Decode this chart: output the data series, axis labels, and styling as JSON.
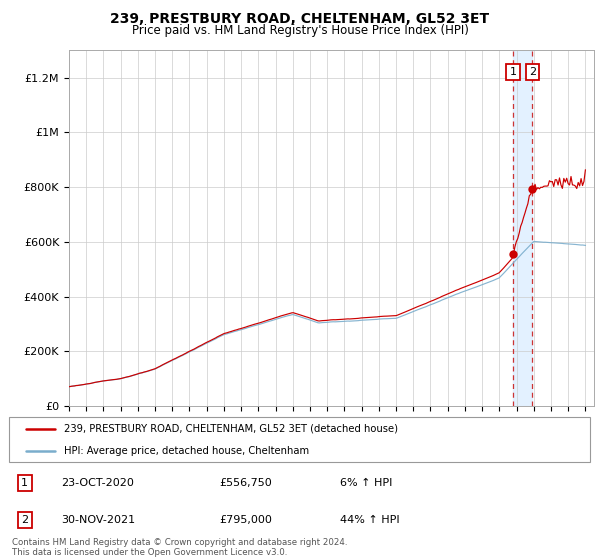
{
  "title": "239, PRESTBURY ROAD, CHELTENHAM, GL52 3ET",
  "subtitle": "Price paid vs. HM Land Registry's House Price Index (HPI)",
  "ylabel_ticks": [
    "£0",
    "£200K",
    "£400K",
    "£600K",
    "£800K",
    "£1M",
    "£1.2M"
  ],
  "ylim": [
    0,
    1300000
  ],
  "yticks": [
    0,
    200000,
    400000,
    600000,
    800000,
    1000000,
    1200000
  ],
  "xlim_start": 1995.0,
  "xlim_end": 2025.5,
  "red_line_color": "#cc0000",
  "blue_line_color": "#7aadcc",
  "shaded_region_color": "#ddeeff",
  "vertical_line_color": "#cc3333",
  "legend_line1": "239, PRESTBURY ROAD, CHELTENHAM, GL52 3ET (detached house)",
  "legend_line2": "HPI: Average price, detached house, Cheltenham",
  "annotation1": {
    "label": "1",
    "date": "23-OCT-2020",
    "price": "£556,750",
    "note": "6% ↑ HPI"
  },
  "annotation2": {
    "label": "2",
    "date": "30-NOV-2021",
    "price": "£795,000",
    "note": "44% ↑ HPI"
  },
  "footer": "Contains HM Land Registry data © Crown copyright and database right 2024.\nThis data is licensed under the Open Government Licence v3.0.",
  "title_fontsize": 10,
  "subtitle_fontsize": 8.5
}
